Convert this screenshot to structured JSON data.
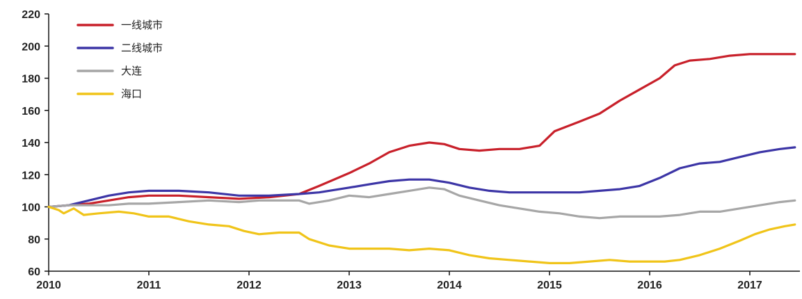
{
  "chart_data": {
    "type": "line",
    "title": "",
    "xlabel": "",
    "ylabel": "",
    "ylim": [
      60,
      220
    ],
    "xlim": [
      2010.0,
      2017.5
    ],
    "y_ticks": [
      60,
      80,
      100,
      120,
      140,
      160,
      180,
      200,
      220
    ],
    "x_ticks": [
      "2010",
      "2011",
      "2012",
      "2013",
      "2014",
      "2015",
      "2016",
      "2017"
    ],
    "grid": false,
    "legend_position": "top-left",
    "series": [
      {
        "name": "一线城市",
        "color": "#c8202a",
        "points": [
          [
            2010.0,
            100
          ],
          [
            2010.2,
            101
          ],
          [
            2010.4,
            102
          ],
          [
            2010.6,
            104
          ],
          [
            2010.8,
            106
          ],
          [
            2011.0,
            107
          ],
          [
            2011.3,
            107
          ],
          [
            2011.6,
            106
          ],
          [
            2011.9,
            105
          ],
          [
            2012.2,
            106
          ],
          [
            2012.5,
            108
          ],
          [
            2012.7,
            113
          ],
          [
            2013.0,
            121
          ],
          [
            2013.2,
            127
          ],
          [
            2013.4,
            134
          ],
          [
            2013.6,
            138
          ],
          [
            2013.8,
            140
          ],
          [
            2013.95,
            139
          ],
          [
            2014.1,
            136
          ],
          [
            2014.3,
            135
          ],
          [
            2014.5,
            136
          ],
          [
            2014.7,
            136
          ],
          [
            2014.9,
            138
          ],
          [
            2015.05,
            147
          ],
          [
            2015.3,
            153
          ],
          [
            2015.5,
            158
          ],
          [
            2015.7,
            166
          ],
          [
            2015.9,
            173
          ],
          [
            2016.1,
            180
          ],
          [
            2016.25,
            188
          ],
          [
            2016.4,
            191
          ],
          [
            2016.6,
            192
          ],
          [
            2016.8,
            194
          ],
          [
            2017.0,
            195
          ],
          [
            2017.2,
            195
          ],
          [
            2017.45,
            195
          ]
        ]
      },
      {
        "name": "二线城市",
        "color": "#3c35a6",
        "points": [
          [
            2010.0,
            100
          ],
          [
            2010.2,
            101
          ],
          [
            2010.4,
            104
          ],
          [
            2010.6,
            107
          ],
          [
            2010.8,
            109
          ],
          [
            2011.0,
            110
          ],
          [
            2011.3,
            110
          ],
          [
            2011.6,
            109
          ],
          [
            2011.9,
            107
          ],
          [
            2012.2,
            107
          ],
          [
            2012.5,
            108
          ],
          [
            2012.7,
            109
          ],
          [
            2013.0,
            112
          ],
          [
            2013.2,
            114
          ],
          [
            2013.4,
            116
          ],
          [
            2013.6,
            117
          ],
          [
            2013.8,
            117
          ],
          [
            2014.0,
            115
          ],
          [
            2014.2,
            112
          ],
          [
            2014.4,
            110
          ],
          [
            2014.6,
            109
          ],
          [
            2014.8,
            109
          ],
          [
            2015.0,
            109
          ],
          [
            2015.3,
            109
          ],
          [
            2015.5,
            110
          ],
          [
            2015.7,
            111
          ],
          [
            2015.9,
            113
          ],
          [
            2016.1,
            118
          ],
          [
            2016.3,
            124
          ],
          [
            2016.5,
            127
          ],
          [
            2016.7,
            128
          ],
          [
            2016.9,
            131
          ],
          [
            2017.1,
            134
          ],
          [
            2017.3,
            136
          ],
          [
            2017.45,
            137
          ]
        ]
      },
      {
        "name": "大连",
        "color": "#a6a6a6",
        "points": [
          [
            2010.0,
            100
          ],
          [
            2010.2,
            101
          ],
          [
            2010.4,
            101
          ],
          [
            2010.6,
            101
          ],
          [
            2010.8,
            102
          ],
          [
            2011.0,
            102
          ],
          [
            2011.3,
            103
          ],
          [
            2011.6,
            104
          ],
          [
            2011.9,
            103
          ],
          [
            2012.1,
            104
          ],
          [
            2012.3,
            104
          ],
          [
            2012.5,
            104
          ],
          [
            2012.6,
            102
          ],
          [
            2012.8,
            104
          ],
          [
            2013.0,
            107
          ],
          [
            2013.2,
            106
          ],
          [
            2013.4,
            108
          ],
          [
            2013.6,
            110
          ],
          [
            2013.8,
            112
          ],
          [
            2013.95,
            111
          ],
          [
            2014.1,
            107
          ],
          [
            2014.3,
            104
          ],
          [
            2014.5,
            101
          ],
          [
            2014.7,
            99
          ],
          [
            2014.9,
            97
          ],
          [
            2015.1,
            96
          ],
          [
            2015.3,
            94
          ],
          [
            2015.5,
            93
          ],
          [
            2015.7,
            94
          ],
          [
            2015.9,
            94
          ],
          [
            2016.1,
            94
          ],
          [
            2016.3,
            95
          ],
          [
            2016.5,
            97
          ],
          [
            2016.7,
            97
          ],
          [
            2016.9,
            99
          ],
          [
            2017.1,
            101
          ],
          [
            2017.3,
            103
          ],
          [
            2017.45,
            104
          ]
        ]
      },
      {
        "name": "海口",
        "color": "#f0c419",
        "points": [
          [
            2010.0,
            100
          ],
          [
            2010.1,
            98
          ],
          [
            2010.15,
            96
          ],
          [
            2010.25,
            99
          ],
          [
            2010.35,
            95
          ],
          [
            2010.5,
            96
          ],
          [
            2010.7,
            97
          ],
          [
            2010.85,
            96
          ],
          [
            2011.0,
            94
          ],
          [
            2011.2,
            94
          ],
          [
            2011.4,
            91
          ],
          [
            2011.6,
            89
          ],
          [
            2011.8,
            88
          ],
          [
            2011.95,
            85
          ],
          [
            2012.1,
            83
          ],
          [
            2012.3,
            84
          ],
          [
            2012.5,
            84
          ],
          [
            2012.6,
            80
          ],
          [
            2012.8,
            76
          ],
          [
            2013.0,
            74
          ],
          [
            2013.2,
            74
          ],
          [
            2013.4,
            74
          ],
          [
            2013.6,
            73
          ],
          [
            2013.8,
            74
          ],
          [
            2014.0,
            73
          ],
          [
            2014.2,
            70
          ],
          [
            2014.4,
            68
          ],
          [
            2014.6,
            67
          ],
          [
            2014.8,
            66
          ],
          [
            2015.0,
            65
          ],
          [
            2015.2,
            65
          ],
          [
            2015.4,
            66
          ],
          [
            2015.6,
            67
          ],
          [
            2015.8,
            66
          ],
          [
            2016.0,
            66
          ],
          [
            2016.15,
            66
          ],
          [
            2016.3,
            67
          ],
          [
            2016.5,
            70
          ],
          [
            2016.7,
            74
          ],
          [
            2016.9,
            79
          ],
          [
            2017.05,
            83
          ],
          [
            2017.2,
            86
          ],
          [
            2017.35,
            88
          ],
          [
            2017.45,
            89
          ]
        ]
      }
    ]
  }
}
